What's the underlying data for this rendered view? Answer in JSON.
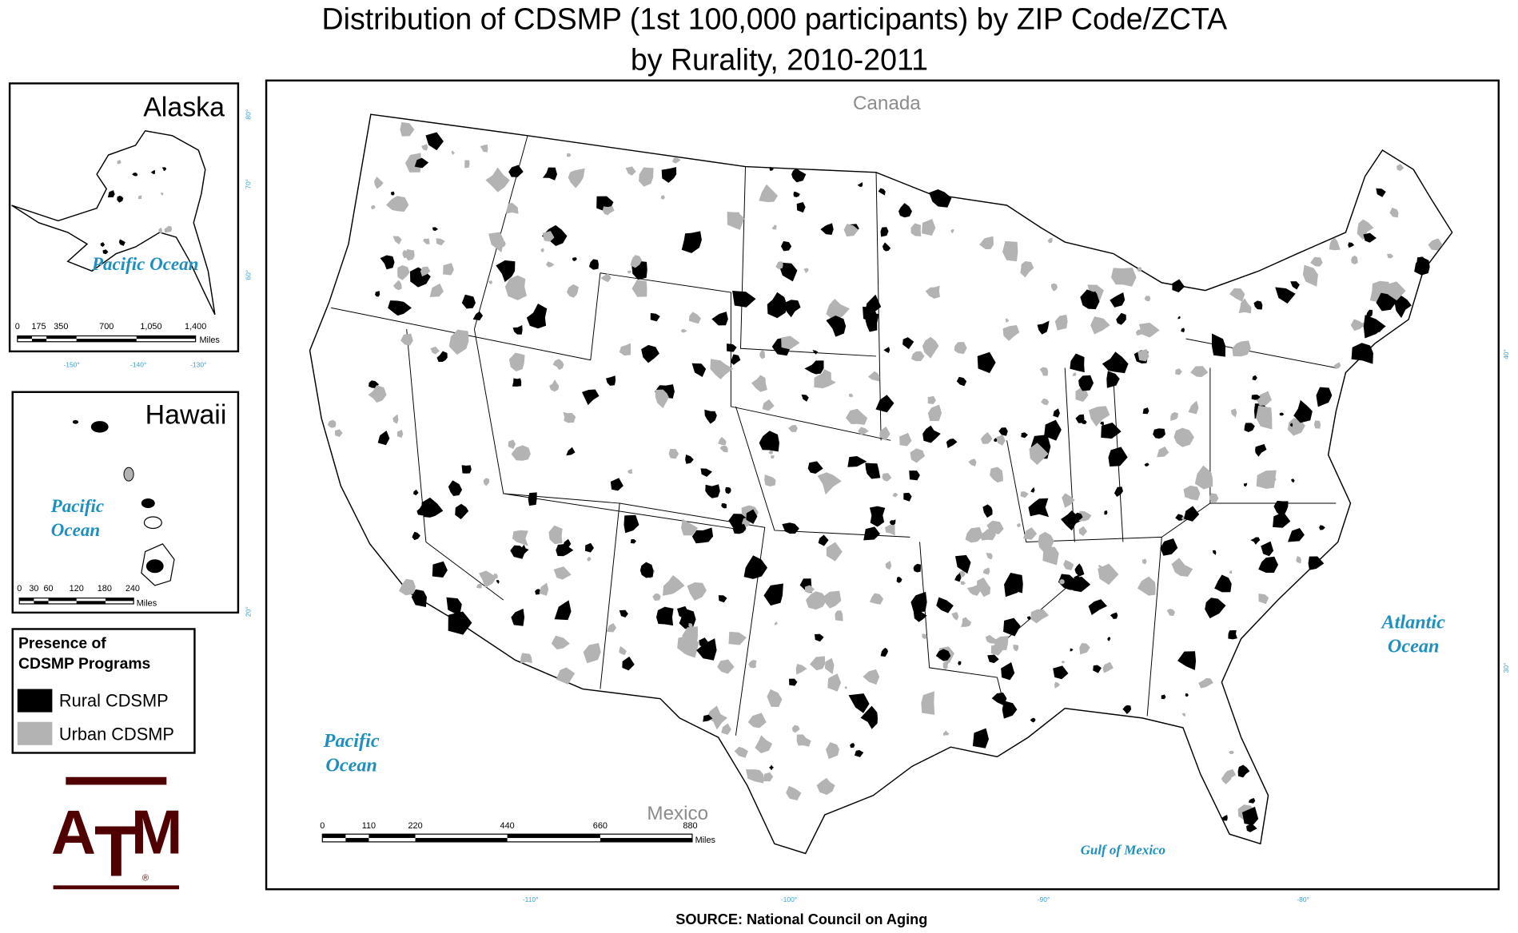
{
  "title": {
    "line1": "Distribution of CDSMP (1st 100,000 participants) by ZIP Code/ZCTA",
    "line2": "by Rurality, 2010-2011"
  },
  "alaska_inset": {
    "label": "Alaska",
    "ocean": "Pacific Ocean",
    "scale_labels": [
      "0",
      "175",
      "350",
      "700",
      "1,050",
      "1,400"
    ],
    "scale_unit": "Miles",
    "longitude_labels": [
      "-150°",
      "-140°",
      "-130°"
    ],
    "latitude_labels": [
      "80°",
      "70°",
      "60°"
    ]
  },
  "hawaii_inset": {
    "label": "Hawaii",
    "ocean": [
      "Pacific",
      "Ocean"
    ],
    "scale_labels": [
      "0",
      "30",
      "60",
      "120",
      "180",
      "240"
    ],
    "scale_unit": "Miles",
    "latitude_labels": [
      "20°"
    ]
  },
  "legend": {
    "title": [
      "Presence of",
      "CDSMP Programs"
    ],
    "items": [
      {
        "label": "Rural CDSMP",
        "color": "#000000"
      },
      {
        "label": "Urban CDSMP",
        "color": "#b3b3b3"
      }
    ]
  },
  "main_map": {
    "neighbors": [
      "Canada",
      "Mexico"
    ],
    "oceans": [
      [
        "Pacific",
        "Ocean"
      ],
      [
        "Atlantic",
        "Ocean"
      ]
    ],
    "gulf": "Gulf of Mexico",
    "scale_labels": [
      "0",
      "110",
      "220",
      "440",
      "660",
      "880"
    ],
    "scale_unit": "Miles",
    "longitude_labels": [
      "-110°",
      "-100°",
      "-90°",
      "-80°"
    ],
    "latitude_labels": [
      "40°",
      "30°"
    ]
  },
  "logo": {
    "letters": [
      "A",
      "T",
      "M"
    ],
    "mark": "®"
  },
  "source": "SOURCE: National Council on Aging"
}
